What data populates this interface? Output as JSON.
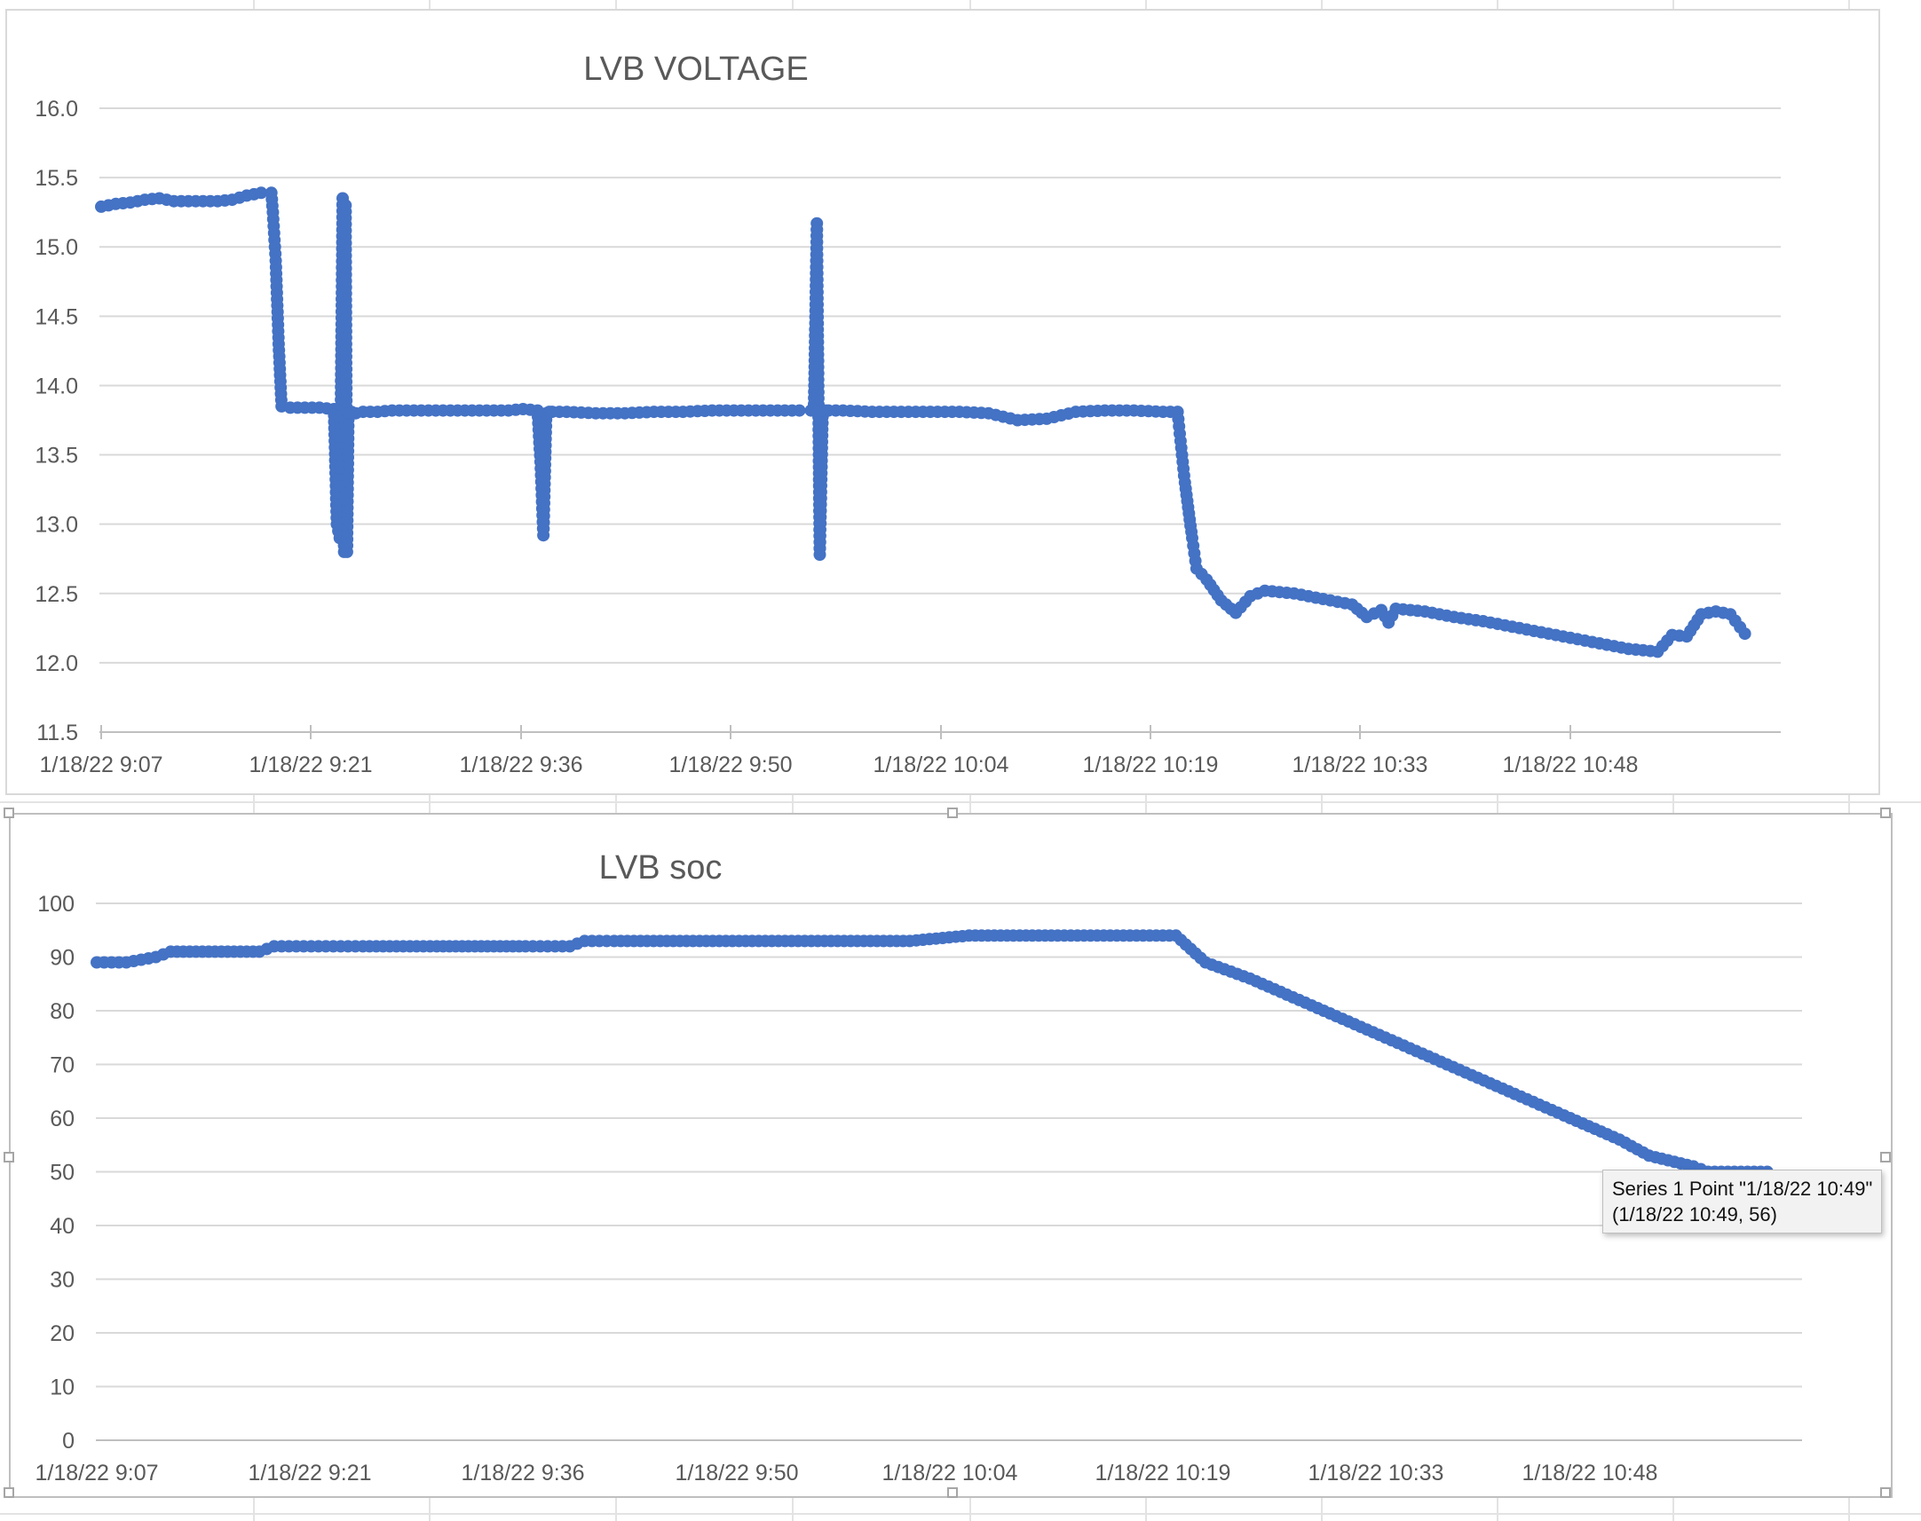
{
  "colors": {
    "series": "#4472c4",
    "grid": "#d9d9d9",
    "text": "#595959",
    "sheet_grid": "#e3e3e3"
  },
  "chart_data": [
    {
      "type": "line",
      "title": "LVB VOLTAGE",
      "xlabel": "",
      "ylabel": "",
      "ylim": [
        11.5,
        16.0
      ],
      "ytick_labels": [
        "11.5",
        "12.0",
        "12.5",
        "13.0",
        "13.5",
        "14.0",
        "14.5",
        "15.0",
        "15.5",
        "16.0"
      ],
      "xtick_labels": [
        "1/18/22 9:07",
        "1/18/22 9:21",
        "1/18/22 9:36",
        "1/18/22 9:50",
        "1/18/22 10:04",
        "1/18/22 10:19",
        "1/18/22 10:33",
        "1/18/22 10:48"
      ],
      "grid": true,
      "legend": "none",
      "series": [
        {
          "x": [
            "9:07",
            "9:08",
            "9:09",
            "9:10",
            "9:11",
            "9:12",
            "9:13",
            "9:14",
            "9:15",
            "9:16",
            "9:17",
            "9:18",
            "9:18.7",
            "9:18.8",
            "9:19",
            "9:19.2",
            "9:19.4",
            "9:20",
            "9:21",
            "9:22",
            "9:23",
            "9:23.2",
            "9:23.4",
            "9:23.6",
            "9:23.7",
            "9:23.8",
            "9:23.9",
            "9:24",
            "9:24.1",
            "9:24.2",
            "9:24.3",
            "9:24.5",
            "9:25",
            "9:26",
            "9:27",
            "9:29",
            "9:31",
            "9:33",
            "9:35",
            "9:36",
            "9:37",
            "9:37.2",
            "9:37.4",
            "9:37.6",
            "9:37.8",
            "9:38",
            "9:39",
            "9:41",
            "9:43",
            "9:45",
            "9:47",
            "9:49",
            "9:51",
            "9:53",
            "9:55",
            "9:55.8",
            "9:56",
            "9:56.2",
            "9:56.4",
            "9:56.6",
            "9:56.8",
            "9:57",
            "9:58",
            "10:00",
            "10:02",
            "10:04",
            "10:06",
            "10:08",
            "10:10",
            "10:12",
            "10:14",
            "10:16",
            "10:18",
            "10:20",
            "10:21",
            "10:21.2",
            "10:21.5",
            "10:22",
            "10:22.3",
            "10:23",
            "10:24",
            "10:25",
            "10:26",
            "10:27",
            "10:29",
            "10:31",
            "10:33",
            "10:34",
            "10:35",
            "10:35.5",
            "10:36",
            "10:38",
            "10:40",
            "10:42",
            "10:44",
            "10:46",
            "10:48",
            "10:50",
            "10:52",
            "10:54",
            "10:55",
            "10:56",
            "10:57",
            "10:58",
            "10:59",
            "11:00"
          ],
          "y": [
            15.29,
            15.31,
            15.32,
            15.34,
            15.35,
            15.33,
            15.33,
            15.33,
            15.33,
            15.34,
            15.37,
            15.39,
            15.39,
            15.25,
            14.9,
            14.3,
            13.85,
            13.84,
            13.84,
            13.84,
            13.83,
            13.0,
            12.9,
            15.35,
            12.8,
            15.3,
            12.8,
            13.8,
            13.8,
            13.81,
            13.8,
            13.8,
            13.81,
            13.81,
            13.82,
            13.82,
            13.82,
            13.82,
            13.82,
            13.83,
            13.82,
            13.45,
            12.92,
            13.8,
            13.81,
            13.81,
            13.81,
            13.8,
            13.8,
            13.81,
            13.81,
            13.82,
            13.82,
            13.82,
            13.82,
            13.82,
            13.82,
            15.17,
            12.78,
            13.82,
            13.82,
            13.82,
            13.82,
            13.81,
            13.81,
            13.81,
            13.81,
            13.8,
            13.75,
            13.76,
            13.81,
            13.82,
            13.82,
            13.81,
            13.81,
            13.6,
            13.3,
            12.9,
            12.68,
            12.6,
            12.45,
            12.36,
            12.48,
            12.52,
            12.5,
            12.46,
            12.42,
            12.33,
            12.38,
            12.29,
            12.39,
            12.37,
            12.33,
            12.3,
            12.26,
            12.22,
            12.18,
            12.14,
            12.1,
            12.08,
            12.2,
            12.19,
            12.35,
            12.37,
            12.35,
            12.21
          ]
        }
      ]
    },
    {
      "type": "line",
      "title": "LVB soc",
      "xlabel": "",
      "ylabel": "",
      "ylim": [
        0,
        100
      ],
      "ytick_labels": [
        "0",
        "10",
        "20",
        "30",
        "40",
        "50",
        "60",
        "70",
        "80",
        "90",
        "100"
      ],
      "xtick_labels": [
        "1/18/22 9:07",
        "1/18/22 9:21",
        "1/18/22 9:36",
        "1/18/22 9:50",
        "1/18/22 10:04",
        "1/18/22 10:19",
        "1/18/22 10:33",
        "1/18/22 10:48"
      ],
      "grid": true,
      "legend": "none",
      "series": [
        {
          "x": [
            "9:07",
            "9:09",
            "9:11",
            "9:12",
            "9:18",
            "9:19",
            "9:21",
            "9:23",
            "9:25",
            "9:30",
            "9:36",
            "9:37",
            "9:39",
            "9:40",
            "9:42",
            "9:46",
            "9:50",
            "9:54",
            "9:58",
            "10:02",
            "10:06",
            "10:09",
            "10:12",
            "10:16",
            "10:20",
            "10:22",
            "10:25",
            "10:30",
            "10:35",
            "10:40",
            "10:45",
            "10:50",
            "10:52",
            "10:55",
            "10:56",
            "11:00"
          ],
          "y": [
            89,
            89,
            90,
            91,
            91,
            92,
            92,
            92,
            92,
            92,
            92,
            92,
            92,
            93,
            93,
            93,
            93,
            93,
            93,
            93,
            94,
            94,
            94,
            94,
            94,
            89,
            86,
            80,
            74,
            68,
            62,
            56,
            53,
            51,
            50,
            50
          ]
        }
      ]
    }
  ],
  "tooltip": {
    "line1": "Series 1 Point \"1/18/22 10:49\"",
    "line2": "(1/18/22 10:49, 56)"
  }
}
